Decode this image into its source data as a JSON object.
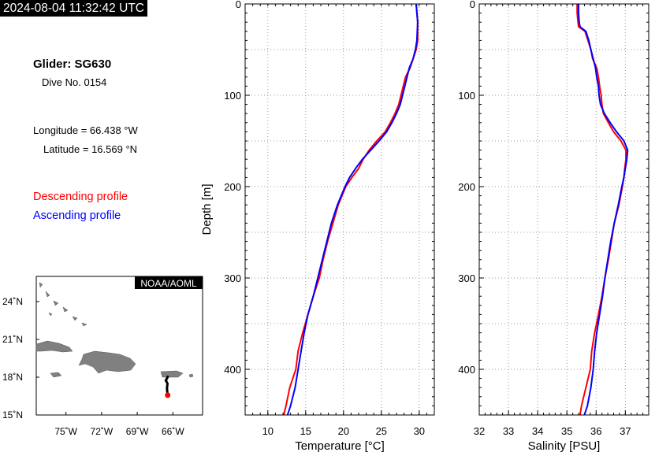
{
  "header": {
    "timestamp": "2024-08-04 11:32:42 UTC"
  },
  "info": {
    "glider": "Glider: SG630",
    "dive": "Dive No. 0154",
    "longitude": "Longitude = 66.438 °W",
    "latitude": "Latitude = 16.569 °N"
  },
  "legend": {
    "descending": {
      "label": "Descending profile",
      "color": "#ff0000"
    },
    "ascending": {
      "label": "Ascending profile",
      "color": "#0000ff"
    }
  },
  "map": {
    "badge": "NOAA/AOML",
    "lon_ticks": [
      "75˚W",
      "72˚W",
      "69˚W",
      "66˚W"
    ],
    "lat_ticks": [
      "24˚N",
      "21˚N",
      "18˚N",
      "15˚N"
    ],
    "lon_range": [
      -77.5,
      -63.5
    ],
    "lat_range": [
      15,
      26
    ],
    "track": [
      [
        -66.4,
        18.1
      ],
      [
        -66.5,
        17.9
      ],
      [
        -66.6,
        17.75
      ],
      [
        -66.45,
        17.5
      ],
      [
        -66.5,
        17.1
      ],
      [
        -66.44,
        16.57
      ]
    ],
    "position": [
      -66.438,
      16.569
    ],
    "land_color": "#808080",
    "track_color": "#000000",
    "position_color": "#ff0000"
  },
  "chart_data": [
    {
      "type": "line",
      "xlabel": "Temperature [°C]",
      "ylabel": "Depth [m]",
      "xlim": [
        7,
        32
      ],
      "ylim": [
        450,
        0
      ],
      "x_ticks": [
        "10",
        "15",
        "20",
        "25",
        "30"
      ],
      "y_ticks": [
        "0",
        "100",
        "200",
        "300",
        "400"
      ],
      "grid": true,
      "series": [
        {
          "name": "Descending profile",
          "color": "#ff0000",
          "depth": [
            0,
            20,
            40,
            50,
            60,
            70,
            80,
            90,
            100,
            110,
            120,
            130,
            140,
            150,
            160,
            170,
            180,
            190,
            200,
            220,
            240,
            260,
            280,
            300,
            320,
            340,
            360,
            380,
            400,
            420,
            440,
            450
          ],
          "values": [
            29.6,
            29.8,
            29.8,
            29.6,
            29.2,
            28.8,
            28.2,
            27.9,
            27.6,
            27.3,
            26.8,
            26.2,
            25.5,
            24.4,
            23.4,
            22.6,
            22.0,
            21.1,
            20.3,
            19.3,
            18.6,
            17.9,
            17.3,
            16.8,
            16.0,
            15.3,
            14.6,
            14.0,
            13.7,
            12.9,
            12.4,
            12.1
          ]
        },
        {
          "name": "Ascending profile",
          "color": "#0000ff",
          "depth": [
            0,
            20,
            40,
            50,
            60,
            70,
            80,
            90,
            100,
            110,
            120,
            130,
            140,
            150,
            160,
            170,
            180,
            190,
            200,
            220,
            240,
            260,
            280,
            300,
            320,
            340,
            360,
            380,
            400,
            420,
            440,
            450
          ],
          "values": [
            29.6,
            29.8,
            29.7,
            29.5,
            29.2,
            28.7,
            28.4,
            28.1,
            27.8,
            27.5,
            27.0,
            26.4,
            25.7,
            24.7,
            23.6,
            22.5,
            21.6,
            20.8,
            20.2,
            19.2,
            18.4,
            17.8,
            17.2,
            16.6,
            16.0,
            15.3,
            14.8,
            14.4,
            14.0,
            13.6,
            13.0,
            12.6
          ]
        }
      ]
    },
    {
      "type": "line",
      "xlabel": "Salinity [PSU]",
      "ylabel": "",
      "xlim": [
        32,
        37.8
      ],
      "ylim": [
        450,
        0
      ],
      "x_ticks": [
        "32",
        "33",
        "34",
        "35",
        "36",
        "37"
      ],
      "y_ticks": [
        "0",
        "100",
        "200",
        "300",
        "400"
      ],
      "grid": true,
      "series": [
        {
          "name": "Descending profile",
          "color": "#ff0000",
          "depth": [
            0,
            10,
            20,
            25,
            30,
            40,
            50,
            60,
            70,
            80,
            90,
            100,
            110,
            120,
            130,
            140,
            150,
            160,
            170,
            180,
            190,
            200,
            220,
            240,
            260,
            280,
            300,
            320,
            340,
            360,
            380,
            400,
            420,
            440,
            450
          ],
          "values": [
            35.35,
            35.35,
            35.38,
            35.4,
            35.62,
            35.72,
            35.82,
            35.88,
            36.02,
            36.08,
            36.12,
            36.17,
            36.2,
            36.25,
            36.42,
            36.6,
            36.85,
            37.02,
            37.02,
            36.98,
            36.95,
            36.9,
            36.78,
            36.62,
            36.52,
            36.42,
            36.3,
            36.2,
            36.08,
            35.95,
            35.85,
            35.8,
            35.65,
            35.5,
            35.45
          ]
        },
        {
          "name": "Ascending profile",
          "color": "#0000ff",
          "depth": [
            0,
            10,
            20,
            25,
            30,
            40,
            50,
            60,
            70,
            80,
            90,
            100,
            110,
            120,
            130,
            140,
            150,
            160,
            170,
            180,
            190,
            200,
            220,
            240,
            260,
            280,
            300,
            320,
            340,
            360,
            380,
            400,
            420,
            440,
            450
          ],
          "values": [
            35.4,
            35.4,
            35.42,
            35.45,
            35.65,
            35.75,
            35.82,
            35.9,
            35.98,
            36.02,
            36.08,
            36.1,
            36.15,
            36.28,
            36.48,
            36.7,
            36.95,
            37.08,
            37.05,
            37.0,
            36.95,
            36.88,
            36.76,
            36.62,
            36.5,
            36.4,
            36.3,
            36.22,
            36.12,
            36.02,
            35.95,
            35.9,
            35.82,
            35.7,
            35.6
          ]
        }
      ]
    }
  ]
}
